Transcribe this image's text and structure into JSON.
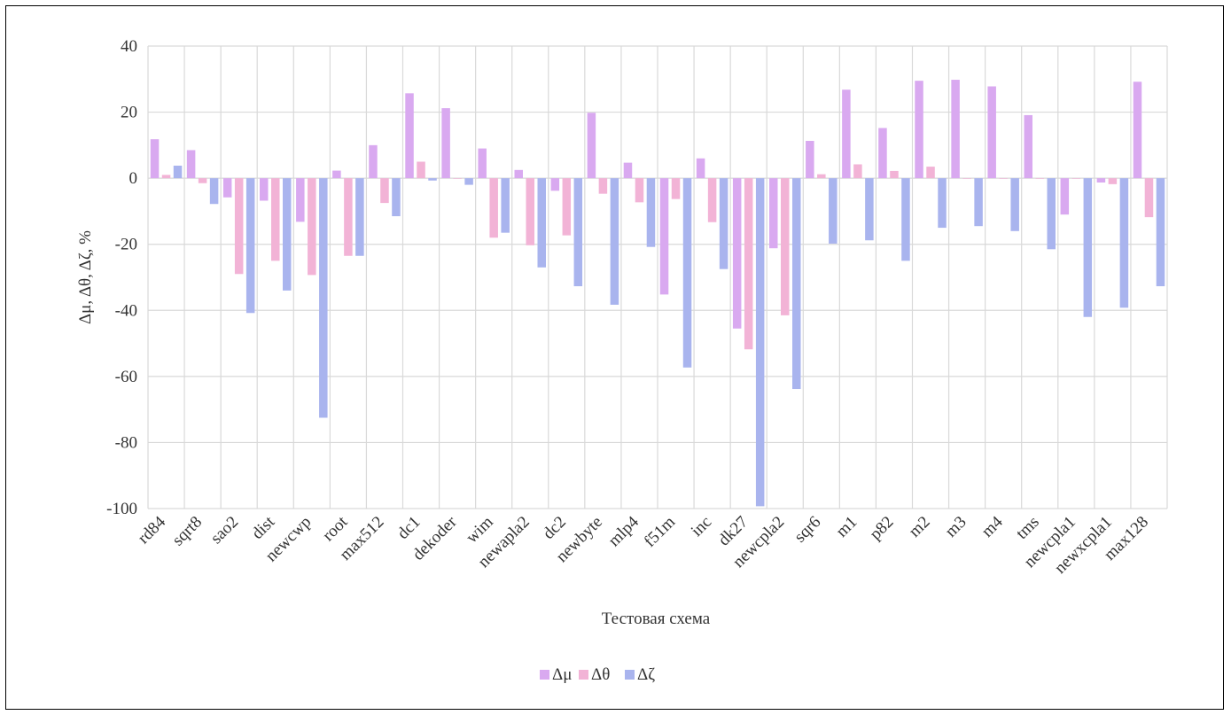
{
  "chart_data": {
    "type": "bar",
    "xlabel": "Тестовая схема",
    "ylabel": "Δμ, Δθ, Δζ, %",
    "ylim": [
      -100,
      40
    ],
    "yticks": [
      40,
      20,
      0,
      -20,
      -40,
      -60,
      -80,
      -100
    ],
    "grid": true,
    "legend_position": "bottom",
    "categories": [
      "rd84",
      "sqrt8",
      "sao2",
      "dist",
      "newcwp",
      "root",
      "max512",
      "dc1",
      "dekoder",
      "wim",
      "newapla2",
      "dc2",
      "newbyte",
      "mlp4",
      "f51m",
      "inc",
      "dk27",
      "newcpla2",
      "sqr6",
      "m1",
      "p82",
      "m2",
      "m3",
      "m4",
      "tms",
      "newcpla1",
      "newxcpla1",
      "max128"
    ],
    "series": [
      {
        "name": "Δμ",
        "color": "#d9a9f0",
        "values": [
          11.8,
          8.5,
          -5.8,
          -6.8,
          -13.2,
          2.3,
          10.0,
          25.7,
          21.2,
          9.0,
          2.5,
          -3.8,
          19.8,
          4.7,
          -35.2,
          6.0,
          -45.5,
          -21.2,
          11.3,
          26.8,
          15.2,
          29.5,
          29.8,
          27.8,
          19.1,
          -11.0,
          -1.3,
          29.2
        ]
      },
      {
        "name": "Δθ",
        "color": "#f2b3d6",
        "values": [
          1.0,
          -1.5,
          -29.0,
          -25.0,
          -29.3,
          -23.5,
          -7.5,
          5.0,
          0.0,
          -18.0,
          -20.3,
          -17.3,
          -4.7,
          -7.3,
          -6.3,
          -13.3,
          -51.8,
          -41.5,
          1.2,
          4.2,
          2.2,
          3.5,
          0.0,
          0.0,
          0.0,
          0.0,
          -1.8,
          -11.8
        ]
      },
      {
        "name": "Δζ",
        "color": "#a9b4ee",
        "values": [
          3.8,
          -7.8,
          -40.8,
          -34.0,
          -72.5,
          -23.5,
          -11.5,
          -0.7,
          -2.0,
          -16.5,
          -27.0,
          -32.7,
          -38.3,
          -20.8,
          -57.3,
          -27.5,
          -99.3,
          -63.8,
          -19.8,
          -18.8,
          -25.0,
          -15.0,
          -14.5,
          -16.0,
          -21.5,
          -42.0,
          -39.2,
          -32.7
        ]
      }
    ]
  }
}
